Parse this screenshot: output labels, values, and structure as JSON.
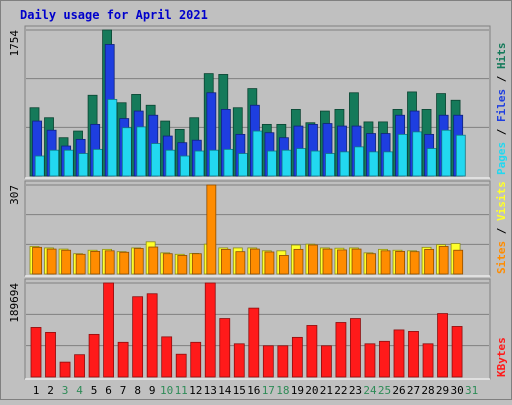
{
  "title": "Daily usage for April 2021",
  "colors": {
    "background": "#c0c0c0",
    "title": "#0000cc",
    "hits": "#157a5a",
    "files": "#1e3ee0",
    "pages": "#22d8f0",
    "visits": "#ffff2a",
    "sites": "#ff8c00",
    "kbytes": "#ff1a1a",
    "weekend_label": "#2e8b57",
    "weekday_label": "#000000"
  },
  "legend": {
    "top": [
      {
        "key": "pages",
        "text": "Pages"
      },
      {
        "key": "sep",
        "text": " / "
      },
      {
        "key": "files",
        "text": "Files"
      },
      {
        "key": "sep",
        "text": " / "
      },
      {
        "key": "hits",
        "text": "Hits"
      }
    ],
    "middle": [
      {
        "key": "sites",
        "text": "Sites"
      },
      {
        "key": "sep",
        "text": " / "
      },
      {
        "key": "visits",
        "text": "Visits"
      }
    ],
    "bottom": [
      {
        "key": "kbytes",
        "text": "KBytes"
      }
    ]
  },
  "chart_data": [
    {
      "type": "bar",
      "panel": "hits-files-pages",
      "ymax_label": "1754",
      "ylim": [
        0,
        1754
      ],
      "categories": [
        "1",
        "2",
        "3",
        "4",
        "5",
        "6",
        "7",
        "8",
        "9",
        "10",
        "11",
        "12",
        "13",
        "14",
        "15",
        "16",
        "17",
        "18",
        "19",
        "20",
        "21",
        "22",
        "23",
        "24",
        "25",
        "26",
        "27",
        "28",
        "29",
        "30",
        "31"
      ],
      "weekend": [
        false,
        false,
        true,
        true,
        false,
        false,
        false,
        false,
        false,
        true,
        true,
        false,
        false,
        false,
        false,
        false,
        true,
        true,
        false,
        false,
        false,
        false,
        false,
        true,
        true,
        false,
        false,
        false,
        false,
        false,
        true
      ],
      "series": [
        {
          "name": "Hits",
          "key": "hits",
          "values": [
            820,
            700,
            460,
            540,
            970,
            1754,
            880,
            980,
            850,
            660,
            560,
            700,
            1230,
            1220,
            820,
            1050,
            620,
            620,
            800,
            640,
            780,
            800,
            1000,
            650,
            650,
            800,
            1010,
            800,
            990,
            910,
            0
          ]
        },
        {
          "name": "Files",
          "key": "files",
          "values": [
            660,
            550,
            360,
            440,
            620,
            1580,
            690,
            780,
            730,
            480,
            400,
            430,
            1000,
            800,
            500,
            850,
            520,
            460,
            600,
            620,
            630,
            600,
            600,
            510,
            510,
            730,
            780,
            500,
            730,
            730,
            0
          ]
        },
        {
          "name": "Pages",
          "key": "pages",
          "values": [
            240,
            310,
            310,
            270,
            320,
            920,
            580,
            590,
            390,
            310,
            240,
            300,
            310,
            320,
            270,
            540,
            300,
            310,
            330,
            300,
            270,
            290,
            350,
            290,
            290,
            500,
            530,
            330,
            550,
            490,
            0
          ]
        }
      ]
    },
    {
      "type": "bar",
      "panel": "visits-sites",
      "ymax_label": "307",
      "ylim": [
        0,
        307
      ],
      "categories": [
        "1",
        "2",
        "3",
        "4",
        "5",
        "6",
        "7",
        "8",
        "9",
        "10",
        "11",
        "12",
        "13",
        "14",
        "15",
        "16",
        "17",
        "18",
        "19",
        "20",
        "21",
        "22",
        "23",
        "24",
        "25",
        "26",
        "27",
        "28",
        "29",
        "30",
        "31"
      ],
      "series": [
        {
          "name": "Visits",
          "key": "visits",
          "values": [
            95,
            90,
            86,
            70,
            82,
            85,
            77,
            90,
            111,
            73,
            68,
            71,
            103,
            90,
            90,
            90,
            80,
            80,
            100,
            103,
            90,
            89,
            90,
            73,
            85,
            82,
            80,
            92,
            101,
            105,
            0
          ]
        },
        {
          "name": "Sites",
          "key": "sites",
          "values": [
            92,
            86,
            82,
            68,
            78,
            80,
            75,
            88,
            93,
            70,
            64,
            70,
            307,
            85,
            77,
            86,
            76,
            64,
            85,
            100,
            86,
            83,
            86,
            70,
            80,
            78,
            77,
            85,
            95,
            82,
            0
          ]
        }
      ]
    },
    {
      "type": "bar",
      "panel": "kbytes",
      "ymax_label": "189694",
      "ylim": [
        0,
        189694
      ],
      "categories": [
        "1",
        "2",
        "3",
        "4",
        "5",
        "6",
        "7",
        "8",
        "9",
        "10",
        "11",
        "12",
        "13",
        "14",
        "15",
        "16",
        "17",
        "18",
        "19",
        "20",
        "21",
        "22",
        "23",
        "24",
        "25",
        "26",
        "27",
        "28",
        "29",
        "30",
        "31"
      ],
      "series": [
        {
          "name": "KBytes",
          "key": "kbytes",
          "values": [
            100000,
            90000,
            30000,
            45000,
            86000,
            189694,
            70000,
            162000,
            168000,
            81000,
            46000,
            70000,
            189694,
            118000,
            67000,
            139000,
            63000,
            63000,
            80000,
            104000,
            63000,
            110000,
            118000,
            67000,
            72000,
            95000,
            92000,
            67000,
            128000,
            102000,
            0
          ]
        }
      ]
    }
  ]
}
